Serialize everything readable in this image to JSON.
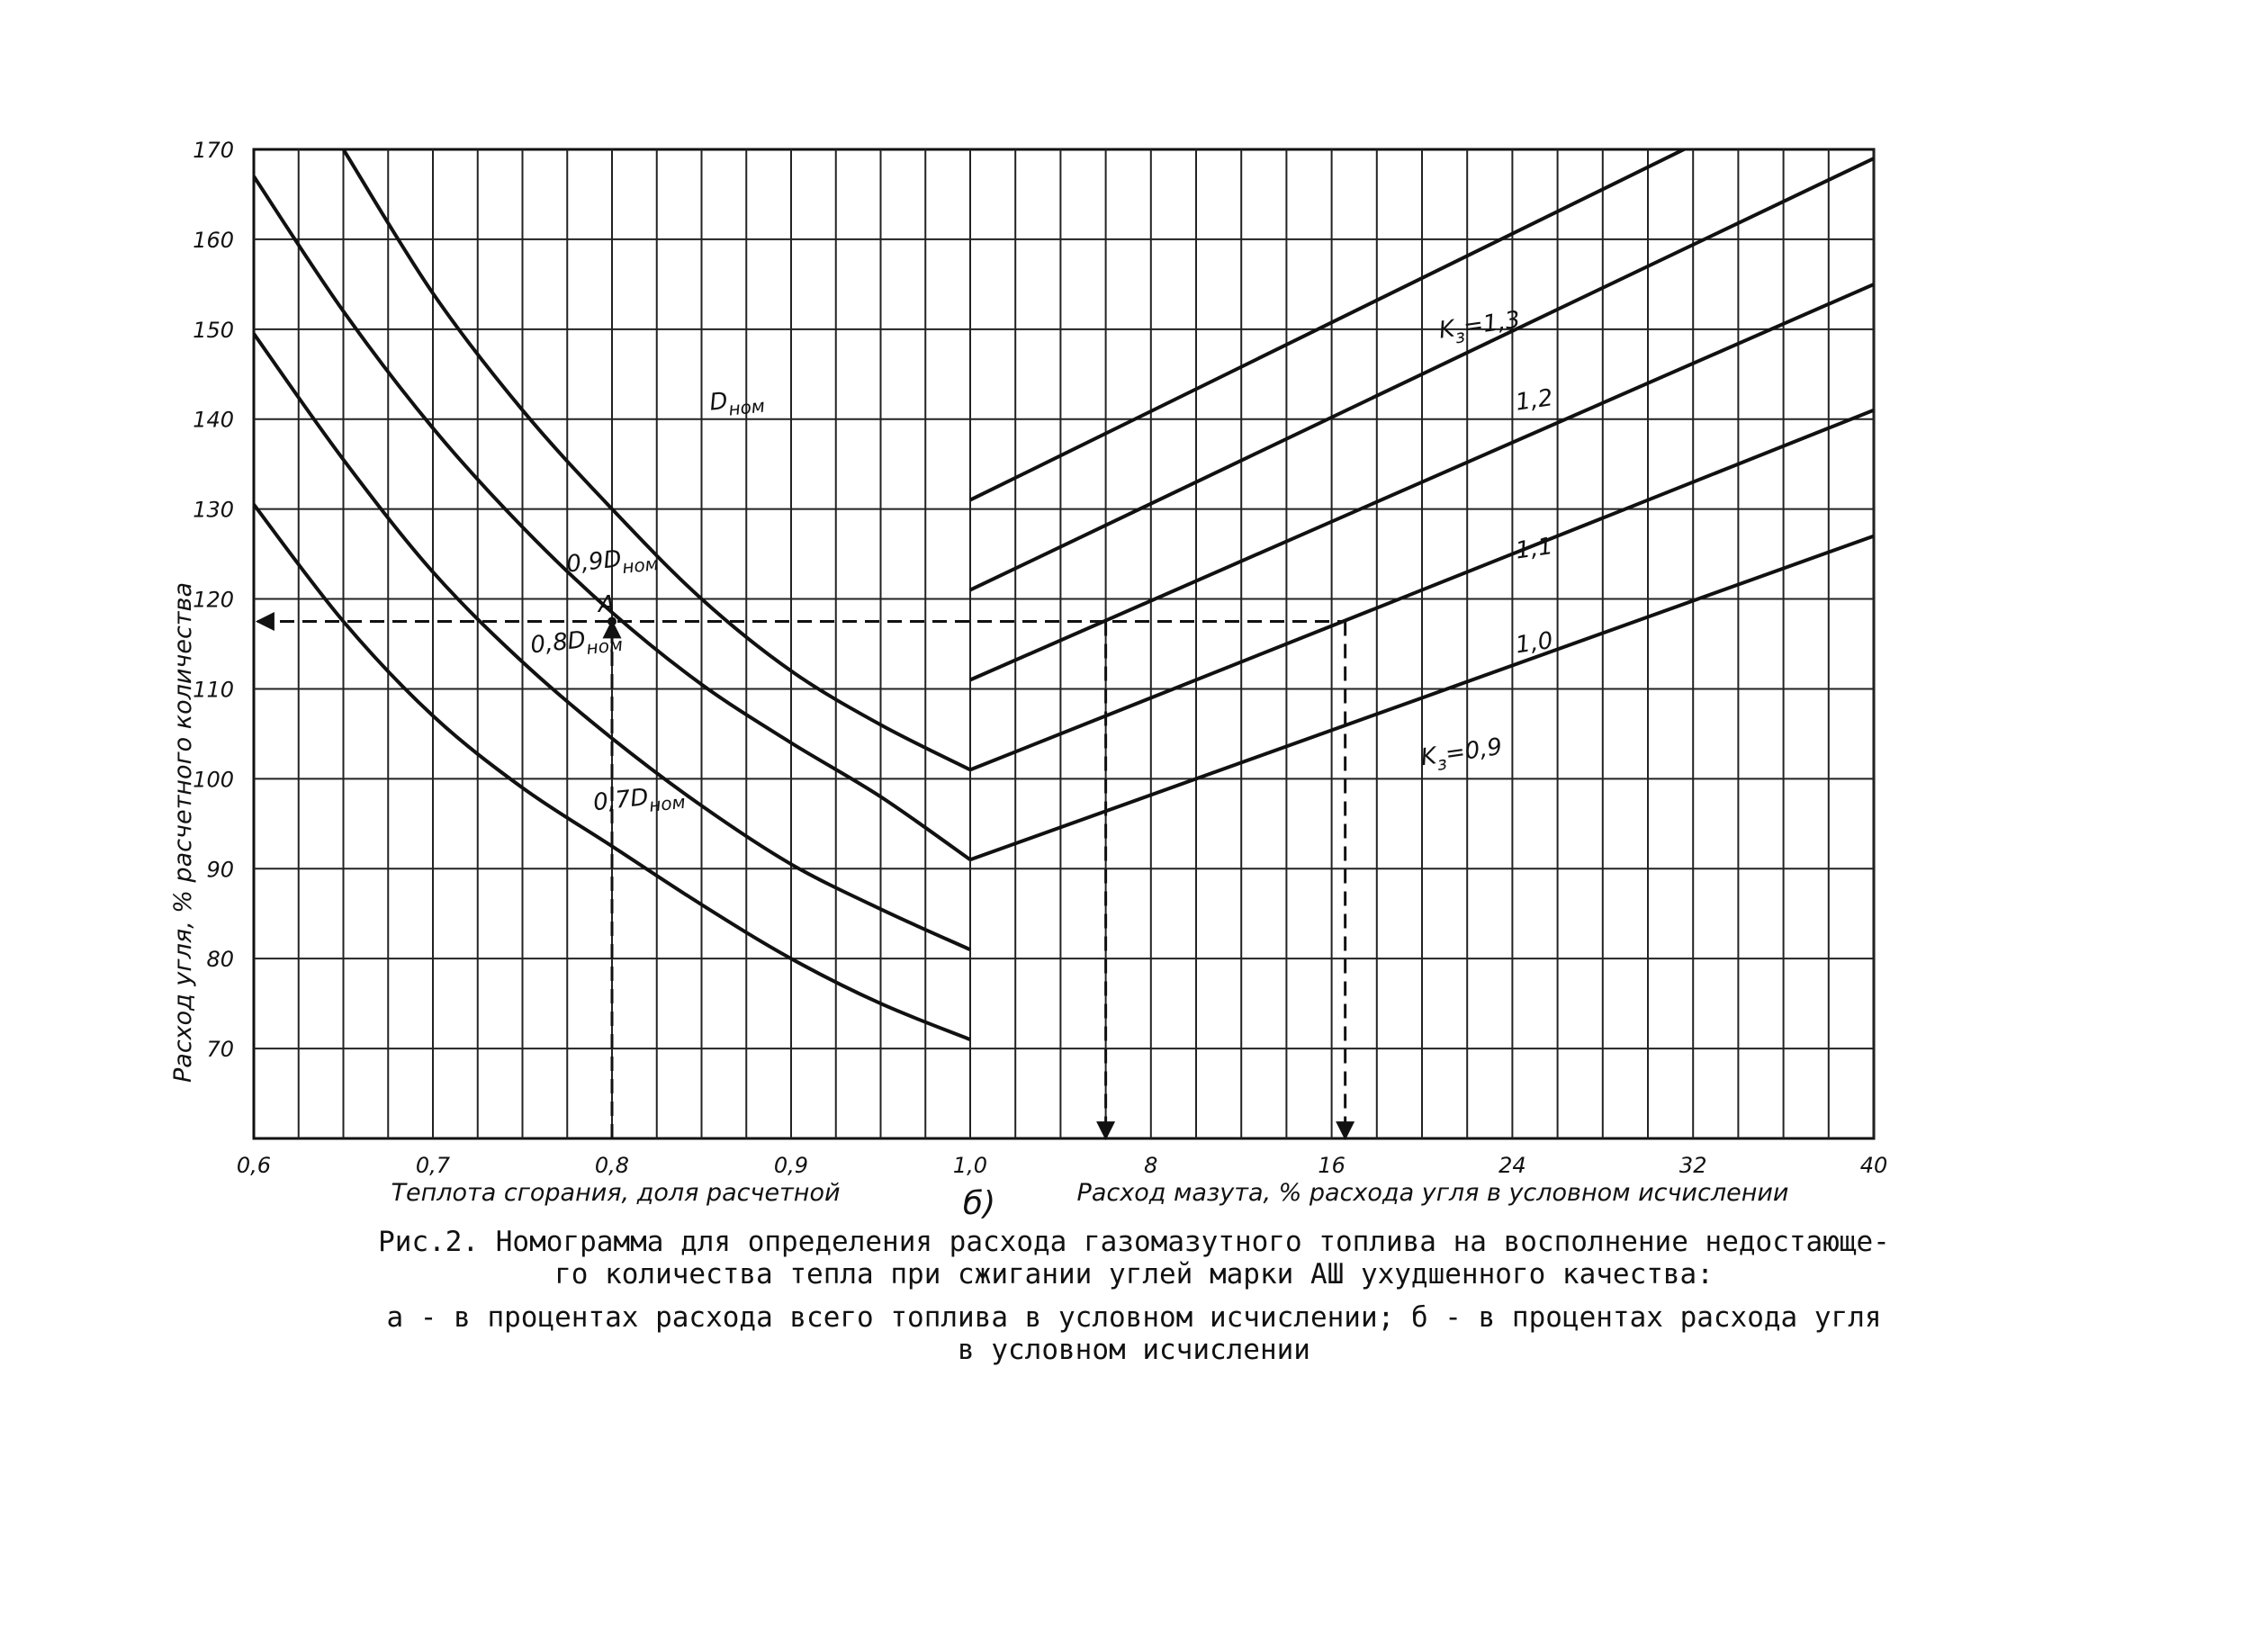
{
  "chart_data": {
    "type": "line",
    "left_panel": {
      "xlabel": "Теплота сгорания, доля расчетной",
      "x_ticks": [
        "0,6",
        "0,7",
        "0,8",
        "0,9",
        "1,0"
      ],
      "xlim": [
        0.6,
        1.0
      ],
      "series": [
        {
          "name": "D_ном",
          "label_main": "D",
          "label_sub": "ном",
          "x": [
            0.65,
            0.7,
            0.75,
            0.8,
            0.85,
            0.9,
            0.95,
            1.0
          ],
          "y": [
            170,
            154,
            141,
            130,
            120,
            112,
            106,
            101
          ]
        },
        {
          "name": "0,9 D_ном",
          "label_main": "0,9D",
          "label_sub": "ном",
          "x": [
            0.6,
            0.65,
            0.7,
            0.75,
            0.8,
            0.85,
            0.9,
            0.95,
            1.0
          ],
          "y": [
            167,
            152,
            139,
            128,
            118.5,
            110.5,
            104,
            98,
            91
          ]
        },
        {
          "name": "0,8 D_ном",
          "label_main": "0,8D",
          "label_sub": "ном",
          "x": [
            0.6,
            0.65,
            0.7,
            0.75,
            0.8,
            0.85,
            0.9,
            0.95,
            1.0
          ],
          "y": [
            149.5,
            135.5,
            123,
            113,
            104.5,
            97,
            90.5,
            85.5,
            81
          ]
        },
        {
          "name": "0,7 D_ном",
          "label_main": "0,7D",
          "label_sub": "ном",
          "x": [
            0.6,
            0.65,
            0.7,
            0.75,
            0.8,
            0.85,
            0.9,
            0.95,
            1.0
          ],
          "y": [
            130.5,
            117.5,
            107,
            99,
            92.5,
            86,
            80,
            75,
            71
          ]
        }
      ]
    },
    "right_panel": {
      "xlabel": "Расход мазута, % расхода угля в условном исчислении",
      "x_ticks": [
        "8",
        "16",
        "24",
        "32",
        "40"
      ],
      "xlim": [
        0,
        40
      ],
      "series": [
        {
          "name": "K_з=1,3",
          "label_main": "K",
          "label_sub": "з",
          "label_suffix": "=1,3",
          "x": [
            0,
            32
          ],
          "y": [
            131,
            170.5
          ]
        },
        {
          "name": "1,2",
          "label_main": "1,2",
          "x": [
            0,
            40
          ],
          "y": [
            121,
            169
          ]
        },
        {
          "name": "1,1",
          "label_main": "1,1",
          "x": [
            0,
            40
          ],
          "y": [
            111,
            155
          ]
        },
        {
          "name": "1,0",
          "label_main": "1,0",
          "x": [
            0,
            40
          ],
          "y": [
            101,
            141
          ]
        },
        {
          "name": "K_з=0,9",
          "label_main": "K",
          "label_sub": "з",
          "label_suffix": "=0,9",
          "x": [
            0,
            40
          ],
          "y": [
            91,
            127
          ]
        }
      ]
    },
    "ylabel": "Расход угля, % расчетного количества",
    "y_ticks": [
      "70",
      "80",
      "90",
      "100",
      "110",
      "120",
      "130",
      "140",
      "150",
      "160",
      "170"
    ],
    "ylim": [
      60,
      170
    ],
    "grid": true,
    "panel_label": "б)",
    "point_label": "A",
    "example": {
      "left_x": 0.8,
      "y": 117.5,
      "right_x": [
        6,
        16.6
      ]
    }
  },
  "caption": {
    "line1": "Рис.2. Номограмма для определения расхода газомазутного топлива на восполнение недостающе-",
    "line2": "го количества тепла при сжигании углей марки АШ ухудшенного качества:",
    "line3": "а - в процентах расхода всего топлива в условном исчислении; б - в процентах расхода угля",
    "line4": "в условном исчислении"
  }
}
